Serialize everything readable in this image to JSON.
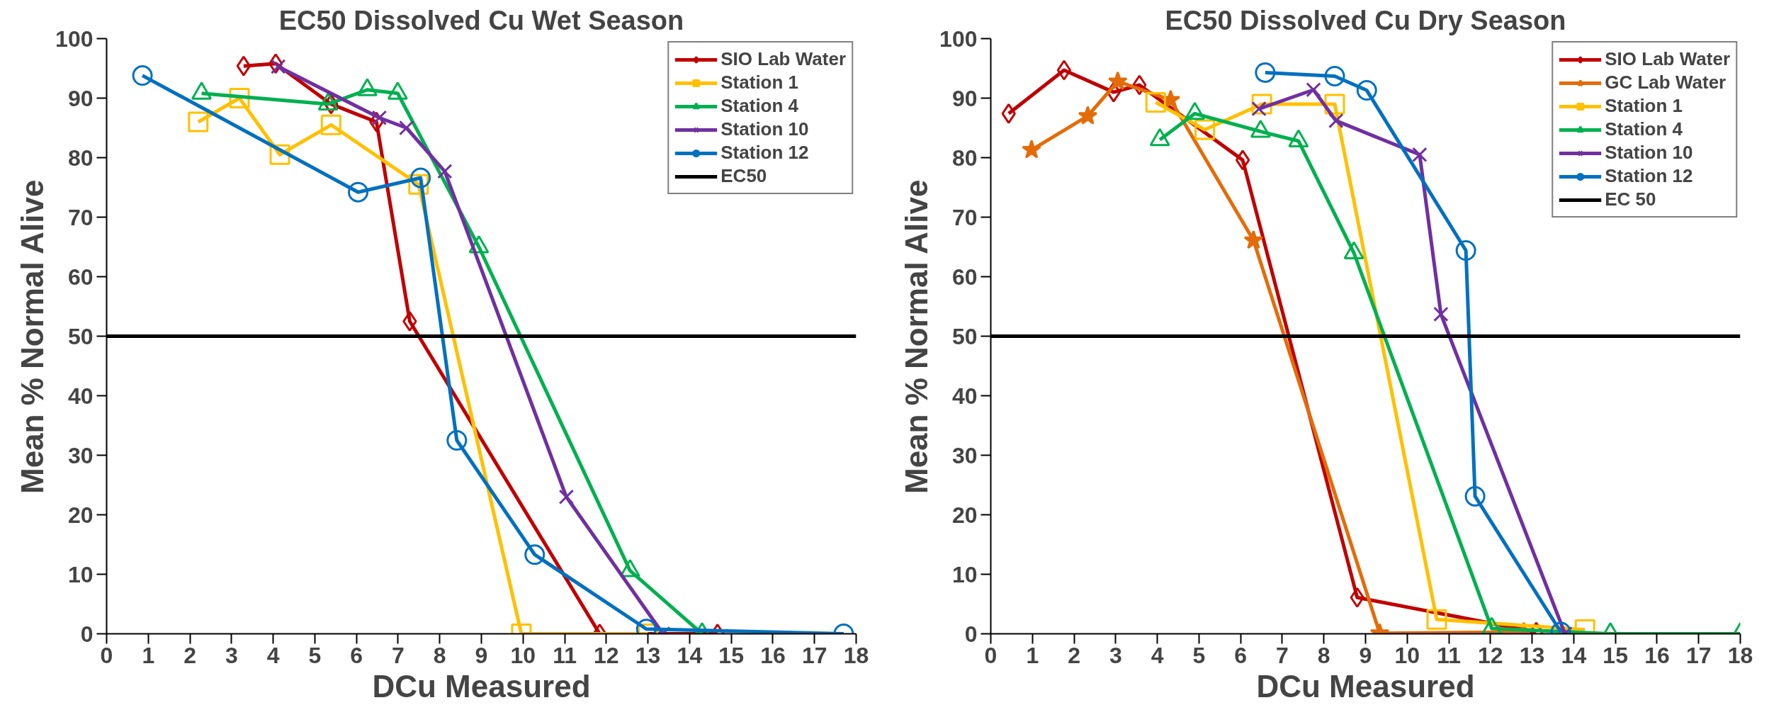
{
  "chart_data": [
    {
      "type": "line",
      "title": "EC50 Dissolved Cu Wet Season",
      "xlabel": "DCu Measured",
      "ylabel": "Mean % Normal Alive",
      "xlim": [
        0,
        18
      ],
      "xticks": [
        0,
        1,
        2,
        3,
        4,
        5,
        6,
        7,
        8,
        9,
        10,
        11,
        12,
        13,
        14,
        15,
        16,
        17,
        18
      ],
      "ylim": [
        0,
        100
      ],
      "yticks": [
        0,
        10,
        20,
        30,
        40,
        50,
        60,
        70,
        80,
        90,
        100
      ],
      "grid": false,
      "legend": "top right",
      "series": [
        {
          "name": "SIO Lab Water",
          "color": "#c00000",
          "marker": "diamond",
          "x": [
            3.29,
            4.06,
            5.39,
            6.48,
            7.28,
            11.84,
            14.67
          ],
          "values": [
            95.4,
            95.8,
            89,
            86,
            52.5,
            0,
            0
          ]
        },
        {
          "name": "Station 1",
          "color": "#ffc000",
          "marker": "square",
          "x": [
            2.2,
            3.19,
            4.16,
            5.39,
            7.49,
            9.96,
            13.0
          ],
          "values": [
            86,
            90,
            80.5,
            85.5,
            75.5,
            0,
            0
          ]
        },
        {
          "name": "Station 4",
          "color": "#00b050",
          "marker": "triangle",
          "x": [
            2.28,
            5.32,
            6.26,
            6.99,
            8.94,
            12.57,
            14.3
          ],
          "values": [
            90.8,
            89,
            91.4,
            90.8,
            65,
            10.6,
            0
          ]
        },
        {
          "name": "Station 10",
          "color": "#7030a0",
          "marker": "cross",
          "x": [
            4.12,
            6.55,
            7.2,
            8.12,
            11.04,
            13.36
          ],
          "values": [
            95.3,
            86.7,
            85,
            77.7,
            23,
            0
          ]
        },
        {
          "name": "Station 12",
          "color": "#0070c0",
          "marker": "circle",
          "x": [
            0.86,
            6.04,
            7.54,
            8.41,
            10.28,
            12.96,
            17.7
          ],
          "values": [
            93.8,
            74.2,
            76.6,
            32.5,
            13.3,
            0.8,
            0
          ]
        }
      ],
      "ref_lines": [
        {
          "axis": "y",
          "value": 50,
          "label": "EC50",
          "color": "#000000"
        }
      ]
    },
    {
      "type": "line",
      "title": "EC50 Dissolved Cu Dry Season",
      "xlabel": "DCu Measured",
      "ylabel": "Mean % Normal Alive",
      "xlim": [
        0,
        18
      ],
      "xticks": [
        0,
        1,
        2,
        3,
        4,
        5,
        6,
        7,
        8,
        9,
        10,
        11,
        12,
        13,
        14,
        15,
        16,
        17,
        18
      ],
      "ylim": [
        0,
        100
      ],
      "yticks": [
        0,
        10,
        20,
        30,
        40,
        50,
        60,
        70,
        80,
        90,
        100
      ],
      "grid": false,
      "legend": "top right",
      "series": [
        {
          "name": "SIO Lab Water",
          "color": "#c00000",
          "marker": "diamond",
          "x": [
            0.43,
            1.76,
            2.95,
            3.57,
            6.05,
            8.8,
            13.1
          ],
          "values": [
            87.4,
            94.7,
            91,
            92.2,
            79.6,
            6.1,
            0.3
          ]
        },
        {
          "name": "GC Lab Water",
          "color": "#e36c09",
          "marker": "star",
          "x": [
            0.98,
            2.33,
            3.05,
            4.32,
            6.31,
            9.34,
            12.8
          ],
          "values": [
            81.3,
            87,
            92.8,
            89.7,
            66.1,
            0.1,
            0.3
          ]
        },
        {
          "name": "Station 1",
          "color": "#ffc000",
          "marker": "square",
          "x": [
            3.96,
            5.14,
            6.51,
            8.26,
            10.71,
            14.27
          ],
          "values": [
            89.3,
            84.7,
            89,
            89,
            2.4,
            0.7
          ]
        },
        {
          "name": "Station 4",
          "color": "#00b050",
          "marker": "triangle",
          "x": [
            4.06,
            4.9,
            6.48,
            7.39,
            8.72,
            12.03,
            14.88,
            18
          ],
          "values": [
            83,
            87.4,
            84.4,
            82.8,
            64,
            0.9,
            0,
            0
          ]
        },
        {
          "name": "Station 10",
          "color": "#7030a0",
          "marker": "cross",
          "x": [
            6.44,
            7.75,
            8.29,
            10.3,
            10.81,
            13.79
          ],
          "values": [
            88.2,
            91.4,
            86.2,
            80.5,
            53.7,
            0
          ]
        },
        {
          "name": "Station 12",
          "color": "#0070c0",
          "marker": "circle",
          "x": [
            6.59,
            8.26,
            9.03,
            11.41,
            11.63,
            13.69
          ],
          "values": [
            94.3,
            93.7,
            91.3,
            64.4,
            23.1,
            0.3
          ]
        }
      ],
      "ref_lines": [
        {
          "axis": "y",
          "value": 50,
          "label": "EC 50",
          "color": "#000000"
        }
      ]
    }
  ]
}
